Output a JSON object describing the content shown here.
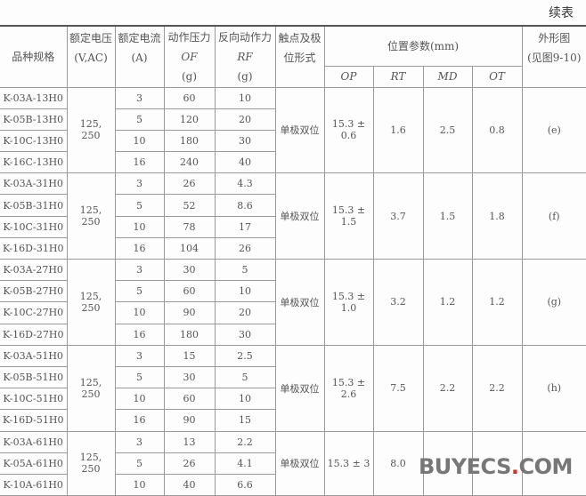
{
  "continued_label": "续表",
  "header": {
    "model": "品种规格",
    "voltage": [
      "额定电压",
      "(V,AC)"
    ],
    "current": [
      "额定电流",
      "(A)"
    ],
    "op_force": [
      "动作压力",
      "OF",
      "(g)"
    ],
    "release_force": [
      "反向动作力",
      "RF",
      "(g)"
    ],
    "contact": [
      "触点及极",
      "位形式"
    ],
    "position": "位置参数(mm)",
    "position_sub": [
      "OP",
      "RT",
      "MD",
      "OT"
    ],
    "outline": [
      "外形图",
      "(见图9-10)"
    ]
  },
  "groups": [
    {
      "voltage": [
        "125,",
        "250"
      ],
      "contact": "单极双位",
      "op": "15.3 ± 0.6",
      "rt": "1.6",
      "md": "2.5",
      "ot": "0.8",
      "outline": "(e)",
      "rows": [
        [
          "K-03A-13H0",
          "3",
          "60",
          "10"
        ],
        [
          "K-05B-13H0",
          "5",
          "120",
          "20"
        ],
        [
          "K-10C-13H0",
          "10",
          "180",
          "30"
        ],
        [
          "K-16C-13H0",
          "16",
          "240",
          "40"
        ]
      ]
    },
    {
      "voltage": [
        "125,",
        "250"
      ],
      "contact": "单极双位",
      "op": "15.3 ± 1.5",
      "rt": "3.7",
      "md": "1.5",
      "ot": "1.8",
      "outline": "(f)",
      "rows": [
        [
          "K-03A-31H0",
          "3",
          "26",
          "4.3"
        ],
        [
          "K-05B-31H0",
          "5",
          "52",
          "8.6"
        ],
        [
          "K-10C-31H0",
          "10",
          "78",
          "17"
        ],
        [
          "K-16D-31H0",
          "16",
          "104",
          "26"
        ]
      ]
    },
    {
      "voltage": [
        "125,",
        "250"
      ],
      "contact": "单极双位",
      "op": "15.3 ± 1.0",
      "rt": "3.2",
      "md": "1.2",
      "ot": "1.2",
      "outline": "(g)",
      "rows": [
        [
          "K-03A-27H0",
          "3",
          "30",
          "5"
        ],
        [
          "K-05B-27H0",
          "5",
          "60",
          "10"
        ],
        [
          "K-10C-27H0",
          "10",
          "90",
          "20"
        ],
        [
          "K-16D-27H0",
          "16",
          "180",
          "30"
        ]
      ]
    },
    {
      "voltage": [
        "125,",
        "250"
      ],
      "contact": "单极双位",
      "op": "15.3 ± 2.6",
      "rt": "7.5",
      "md": "2.2",
      "ot": "2.2",
      "outline": "(h)",
      "rows": [
        [
          "K-03A-51H0",
          "3",
          "15",
          "2.5"
        ],
        [
          "K-05B-51H0",
          "5",
          "30",
          "5"
        ],
        [
          "K-10C-51H0",
          "10",
          "60",
          "10"
        ],
        [
          "K-16D-51H0",
          "16",
          "90",
          "15"
        ]
      ]
    },
    {
      "voltage": [
        "125,",
        "250"
      ],
      "contact": "单极双位",
      "op": "15.3 ± 3",
      "rt": "8.0",
      "md": "",
      "ot": "",
      "outline": "",
      "rows": [
        [
          "K-03A-61H0",
          "3",
          "13",
          "2.2"
        ],
        [
          "K-05A-61H0",
          "5",
          "26",
          "4.1"
        ],
        [
          "K-10A-61H0",
          "10",
          "40",
          "6.6"
        ]
      ]
    }
  ],
  "watermark": {
    "main": "BUYECS",
    "dot": ".",
    "tail": "COM"
  }
}
